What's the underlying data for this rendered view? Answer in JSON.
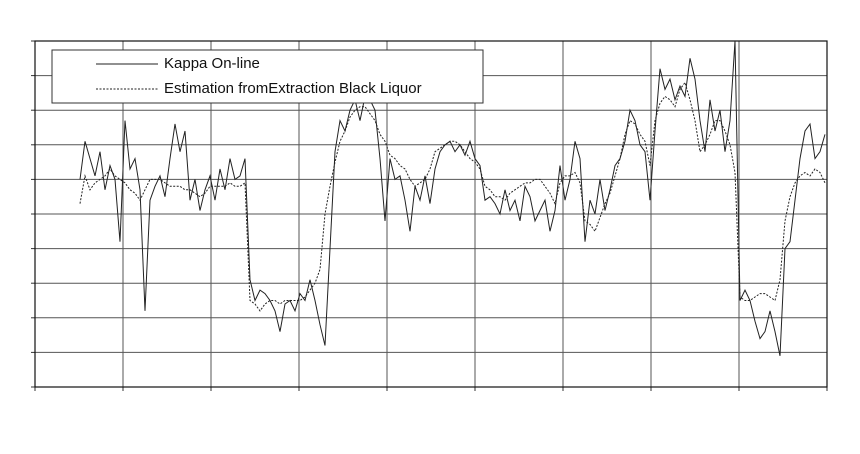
{
  "chart_data": {
    "type": "line",
    "x": [
      0,
      1,
      2,
      3,
      4,
      5,
      6,
      7,
      8,
      9,
      10,
      11,
      12,
      13,
      14,
      15,
      16,
      17,
      18,
      19,
      20,
      21,
      22,
      23,
      24,
      25,
      26,
      27,
      28,
      29,
      30,
      31,
      32,
      33,
      34,
      35,
      36,
      37,
      38,
      39,
      40,
      41,
      42,
      43,
      44,
      45,
      46,
      47,
      48,
      49,
      50,
      51,
      52,
      53,
      54,
      55,
      56,
      57,
      58,
      59,
      60,
      61,
      62,
      63,
      64,
      65,
      66,
      67,
      68,
      69,
      70,
      71,
      72,
      73,
      74,
      75,
      76,
      77,
      78,
      79,
      80,
      81,
      82,
      83,
      84,
      85,
      86,
      87,
      88,
      89,
      90,
      91,
      92,
      93,
      94,
      95,
      96,
      97,
      98,
      99,
      100,
      101,
      102,
      103,
      104,
      105,
      106,
      107,
      108,
      109,
      110,
      111,
      112,
      113,
      114,
      115,
      116,
      117,
      118,
      119,
      120,
      121,
      122,
      123,
      124,
      125,
      126,
      127,
      128,
      129,
      130,
      131,
      132,
      133,
      134,
      135,
      136,
      137,
      138,
      139,
      140,
      141,
      142,
      143,
      144,
      145,
      146,
      147,
      148,
      149
    ],
    "series": [
      {
        "name": "Kappa On-line",
        "color": "#222222",
        "dash": "solid",
        "values": [
          6.0,
          7.1,
          6.6,
          6.1,
          6.8,
          5.7,
          6.4,
          6.0,
          4.2,
          7.7,
          6.3,
          6.6,
          5.7,
          2.2,
          5.4,
          5.8,
          6.1,
          5.5,
          6.6,
          7.6,
          6.8,
          7.4,
          5.4,
          6.0,
          5.1,
          5.7,
          6.1,
          5.4,
          6.3,
          5.7,
          6.6,
          6.0,
          6.1,
          6.6,
          3.1,
          2.5,
          2.8,
          2.7,
          2.5,
          2.2,
          1.6,
          2.4,
          2.5,
          2.2,
          2.7,
          2.5,
          3.1,
          2.5,
          1.8,
          1.2,
          4.0,
          6.8,
          7.7,
          7.4,
          8.0,
          8.3,
          7.7,
          8.4,
          8.3,
          8.0,
          6.6,
          4.8,
          6.6,
          6.0,
          6.1,
          5.4,
          4.5,
          5.8,
          5.4,
          6.1,
          5.3,
          6.3,
          6.8,
          7.0,
          7.1,
          6.8,
          7.0,
          6.7,
          7.1,
          6.6,
          6.4,
          5.4,
          5.5,
          5.3,
          5.0,
          5.7,
          5.1,
          5.4,
          4.8,
          5.8,
          5.5,
          4.8,
          5.1,
          5.4,
          4.5,
          5.1,
          6.4,
          5.4,
          6.0,
          7.1,
          6.6,
          4.2,
          5.4,
          5.0,
          6.0,
          5.1,
          5.7,
          6.4,
          6.6,
          7.1,
          8.0,
          7.7,
          7.0,
          6.8,
          5.4,
          7.4,
          9.2,
          8.6,
          8.9,
          8.3,
          8.7,
          8.4,
          9.5,
          8.9,
          7.7,
          6.8,
          8.3,
          7.4,
          8.0,
          6.8,
          7.7,
          10.0,
          2.5,
          2.8,
          2.5,
          1.9,
          1.4,
          1.6,
          2.2,
          1.6,
          0.9,
          4.0,
          4.2,
          5.4,
          6.6,
          7.4,
          7.6,
          6.6,
          6.8,
          7.3
        ]
      },
      {
        "name": "Estimation fromExtraction Black Liquor",
        "color": "#222222",
        "dash": "dashed",
        "values": [
          5.3,
          6.1,
          5.7,
          5.9,
          6.0,
          6.1,
          6.3,
          6.1,
          6.0,
          5.9,
          5.7,
          5.6,
          5.4,
          5.7,
          6.0,
          6.0,
          6.0,
          5.9,
          5.8,
          5.8,
          5.8,
          5.7,
          5.7,
          5.6,
          5.5,
          5.6,
          5.8,
          5.8,
          5.8,
          5.8,
          5.9,
          5.8,
          5.8,
          5.9,
          2.5,
          2.4,
          2.2,
          2.4,
          2.5,
          2.5,
          2.4,
          2.5,
          2.5,
          2.5,
          2.5,
          2.6,
          2.8,
          3.0,
          3.4,
          5.0,
          5.8,
          6.5,
          7.1,
          7.4,
          7.8,
          8.0,
          8.1,
          8.1,
          7.9,
          7.7,
          7.3,
          7.1,
          6.7,
          6.6,
          6.4,
          6.3,
          6.0,
          5.8,
          5.9,
          6.0,
          6.3,
          6.8,
          6.9,
          7.0,
          7.1,
          7.1,
          7.0,
          6.8,
          6.6,
          6.5,
          6.3,
          5.8,
          5.7,
          5.5,
          5.5,
          5.4,
          5.6,
          5.7,
          5.8,
          5.9,
          5.9,
          6.0,
          6.0,
          5.8,
          5.6,
          5.3,
          5.9,
          6.1,
          6.1,
          6.2,
          5.9,
          4.8,
          4.7,
          4.5,
          4.9,
          5.3,
          5.6,
          6.1,
          6.6,
          7.3,
          7.7,
          7.6,
          7.3,
          7.1,
          6.4,
          7.7,
          8.2,
          8.4,
          8.3,
          8.1,
          8.6,
          8.8,
          8.3,
          7.7,
          6.8,
          7.0,
          7.3,
          7.7,
          7.7,
          7.4,
          7.0,
          6.2,
          2.6,
          2.5,
          2.5,
          2.6,
          2.7,
          2.7,
          2.6,
          2.5,
          3.1,
          4.8,
          5.5,
          5.9,
          6.1,
          6.2,
          6.1,
          6.3,
          6.2,
          5.9
        ]
      }
    ],
    "xlim": [
      -9,
      149.4
    ],
    "xticks": [
      -9,
      8.6,
      26.2,
      43.8,
      61.4,
      79,
      96.6,
      114.2,
      131.8,
      149.4
    ],
    "ylim": [
      0,
      10
    ],
    "yticks": [
      0,
      1,
      2,
      3,
      4,
      5,
      6,
      7,
      8,
      9,
      10
    ],
    "grid": true,
    "legend": "upper left"
  }
}
